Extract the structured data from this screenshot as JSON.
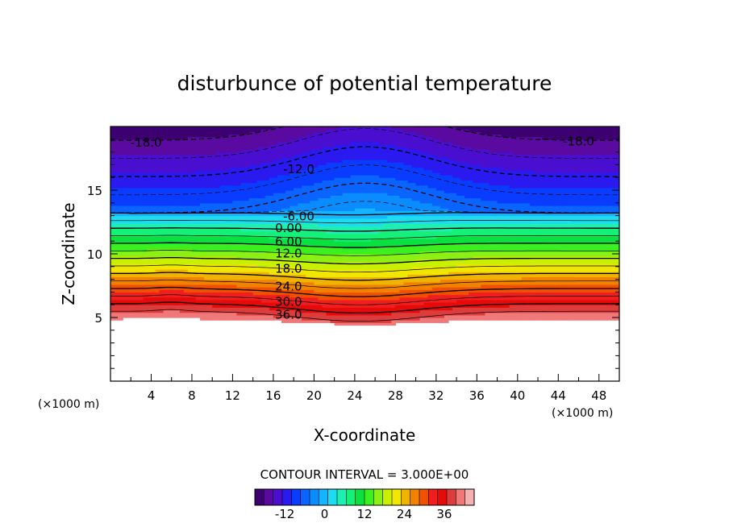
{
  "chart_data": {
    "type": "heatmap",
    "title": "disturbunce of potential temperature",
    "xlabel": "X-coordinate",
    "ylabel": "Z-coordinate",
    "x_unit_left": "(×1000 m)",
    "x_unit_right": "(×1000 m)",
    "xlim": [
      0,
      50
    ],
    "ylim": [
      0,
      20
    ],
    "x_ticks": [
      "4",
      "8",
      "12",
      "16",
      "20",
      "24",
      "28",
      "32",
      "36",
      "40",
      "44",
      "48"
    ],
    "x_tick_values": [
      4,
      8,
      12,
      16,
      20,
      24,
      28,
      32,
      36,
      40,
      44,
      48
    ],
    "y_ticks": [
      "5",
      "10",
      "15"
    ],
    "y_tick_values": [
      5,
      10,
      15
    ],
    "contour_interval_text": "CONTOUR INTERVAL = 3.000E+00",
    "contour_interval": 3.0,
    "value_range": [
      -21,
      45
    ],
    "contour_labels": [
      {
        "text": "-18.0",
        "x": 3.5,
        "z": 18.8
      },
      {
        "text": "-18.0",
        "x": 46.0,
        "z": 18.9
      },
      {
        "text": "-12.0",
        "x": 18.5,
        "z": 16.7
      },
      {
        "text": "-6.00",
        "x": 18.5,
        "z": 13.0
      },
      {
        "text": "0.00",
        "x": 17.5,
        "z": 12.1
      },
      {
        "text": "6.00",
        "x": 17.5,
        "z": 11.0
      },
      {
        "text": "12.0",
        "x": 17.5,
        "z": 10.1
      },
      {
        "text": "18.0",
        "x": 17.5,
        "z": 8.9
      },
      {
        "text": "24.0",
        "x": 17.5,
        "z": 7.5
      },
      {
        "text": "30.0",
        "x": 17.5,
        "z": 6.3
      },
      {
        "text": "36.0",
        "x": 17.5,
        "z": 5.3
      }
    ],
    "colorbar": {
      "tick_labels": [
        "-12",
        "0",
        "12",
        "24",
        "36"
      ],
      "tick_values": [
        -12,
        0,
        12,
        24,
        36
      ],
      "colors": [
        "#3d0070",
        "#5a0aa0",
        "#4a0ed0",
        "#2a1af0",
        "#0a3cff",
        "#0a64ff",
        "#0a8cff",
        "#14b4ff",
        "#1edcf0",
        "#1ef0b4",
        "#14f078",
        "#0ae040",
        "#3cf020",
        "#8cf014",
        "#c8f000",
        "#f0e600",
        "#f0b400",
        "#f08200",
        "#f05000",
        "#f01e1e",
        "#e60a0a",
        "#dc3c3c",
        "#f07878",
        "#f5b0b0"
      ]
    }
  }
}
